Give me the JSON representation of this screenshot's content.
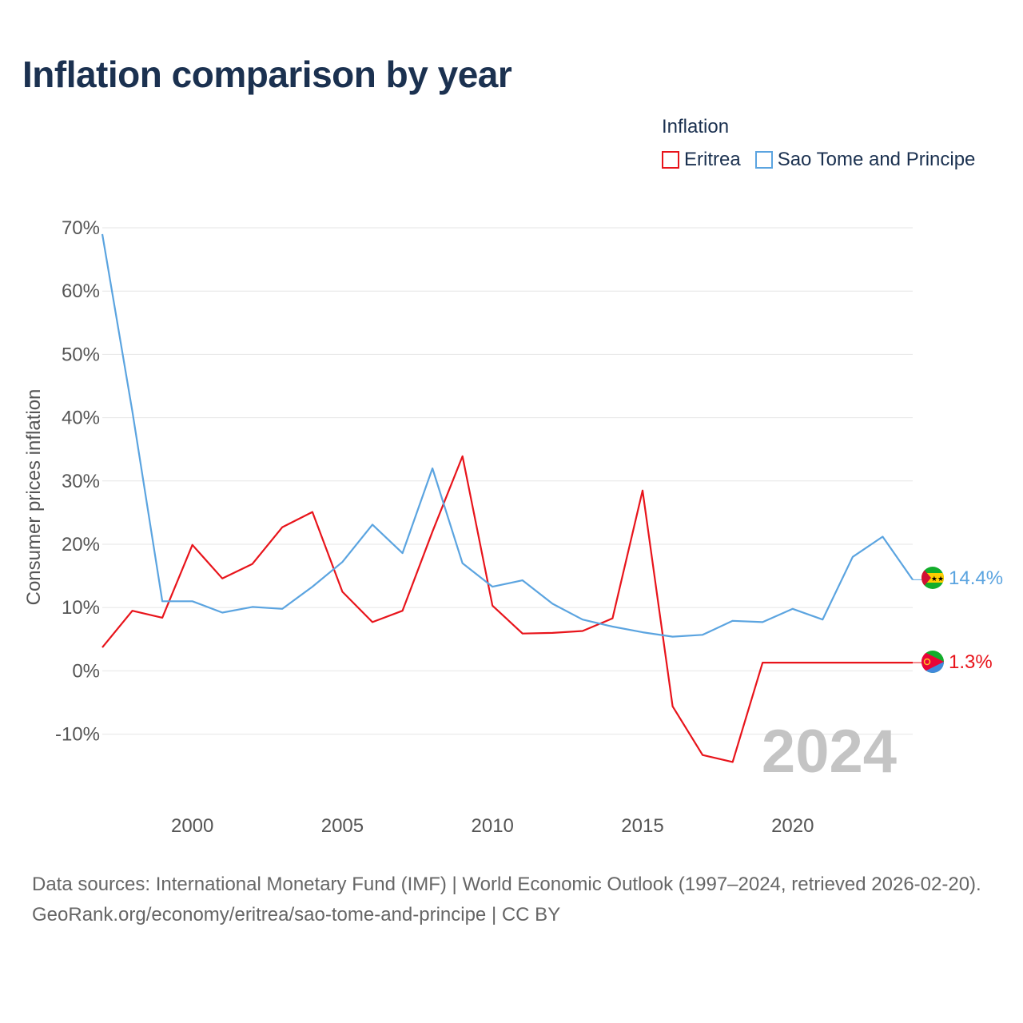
{
  "title": "Inflation comparison by year",
  "legend": {
    "title": "Inflation",
    "items": [
      {
        "label": "Eritrea",
        "color": "#e8141b"
      },
      {
        "label": "Sao Tome and Principe",
        "color": "#5ba4e0"
      }
    ]
  },
  "footer": {
    "sources": "Data sources: International Monetary Fund (IMF) | World Economic Outlook (1997–2024, retrieved 2026-02-20).",
    "credit": "GeoRank.org/economy/eritrea/sao-tome-and-principe | CC BY"
  },
  "chart_data": {
    "type": "line",
    "title": "Inflation comparison by year",
    "ylabel": "Consumer prices inflation",
    "xlabel": "",
    "xlim": [
      1997,
      2024
    ],
    "ylim": [
      -16,
      70
    ],
    "x_ticks": [
      2000,
      2005,
      2010,
      2015,
      2020
    ],
    "y_ticks": [
      -10,
      0,
      10,
      20,
      30,
      40,
      50,
      60,
      70
    ],
    "y_tick_labels": [
      "-10%",
      "0%",
      "10%",
      "20%",
      "30%",
      "40%",
      "50%",
      "60%",
      "70%"
    ],
    "grid": true,
    "watermark_year": "2024",
    "x": [
      1997,
      1998,
      1999,
      2000,
      2001,
      2002,
      2003,
      2004,
      2005,
      2006,
      2007,
      2008,
      2009,
      2010,
      2011,
      2012,
      2013,
      2014,
      2015,
      2016,
      2017,
      2018,
      2019,
      2020,
      2021,
      2022,
      2023,
      2024
    ],
    "series": [
      {
        "name": "Eritrea",
        "color": "#e8141b",
        "end_label": "1.3%",
        "values": [
          3.7,
          9.5,
          8.4,
          19.9,
          14.6,
          16.9,
          22.7,
          25.1,
          12.5,
          7.7,
          9.5,
          22,
          33.9,
          10.3,
          5.9,
          6.0,
          6.3,
          8.3,
          28.5,
          -5.6,
          -13.3,
          -14.4,
          1.3,
          1.3,
          1.3,
          1.3,
          1.3,
          1.3
        ]
      },
      {
        "name": "Sao Tome and Principe",
        "color": "#5ba4e0",
        "end_label": "14.4%",
        "values": [
          69,
          41,
          11.0,
          11.0,
          9.2,
          10.1,
          9.8,
          13.3,
          17.2,
          23.1,
          18.6,
          32.0,
          17.0,
          13.3,
          14.3,
          10.6,
          8.1,
          7.0,
          6.1,
          5.4,
          5.7,
          7.9,
          7.7,
          9.8,
          8.1,
          18.0,
          21.2,
          14.4
        ]
      }
    ]
  }
}
